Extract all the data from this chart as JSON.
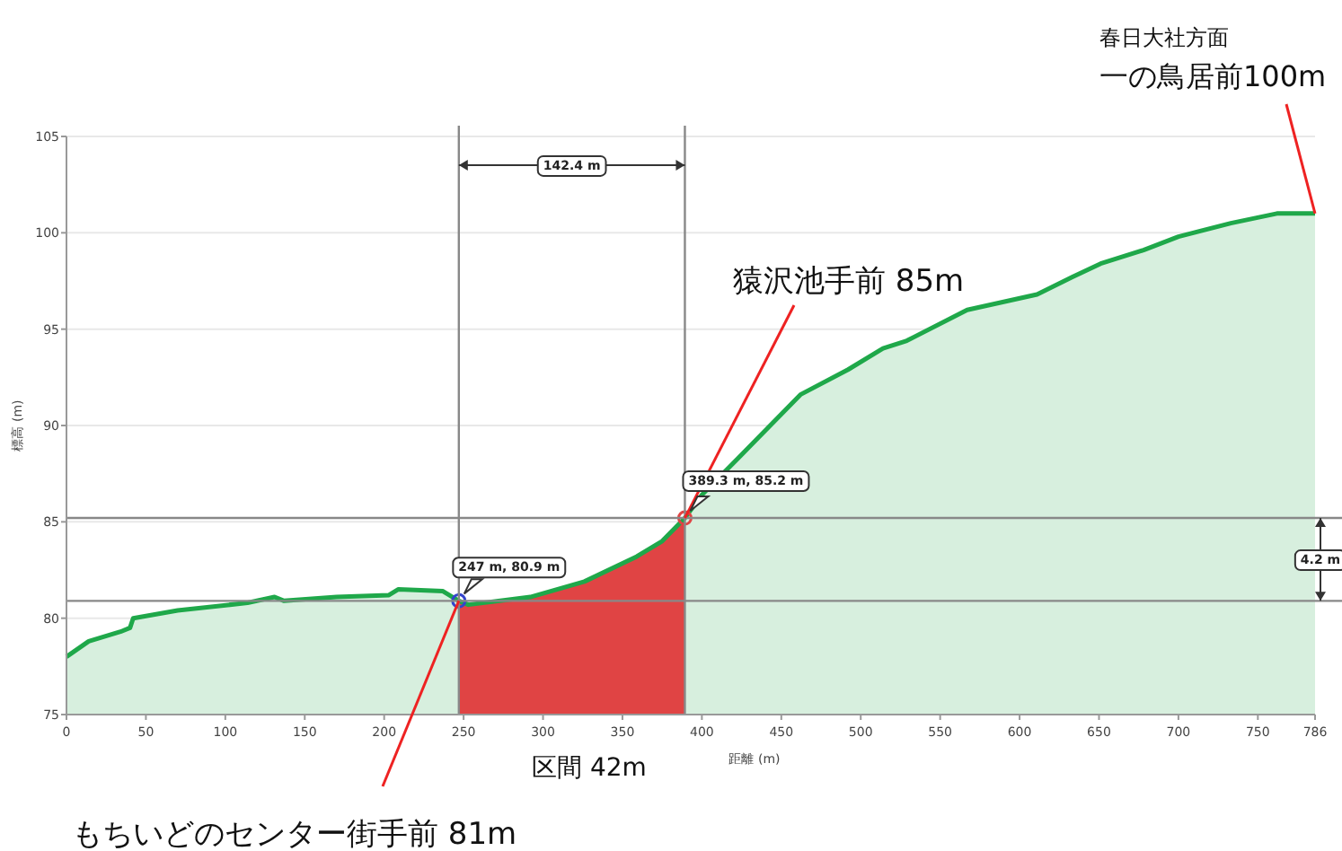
{
  "chart_data": {
    "type": "area",
    "xlabel": "距離 (m)",
    "ylabel": "標高 (m)",
    "xlim": [
      0,
      786
    ],
    "ylim": [
      75,
      105
    ],
    "xticks": [
      0,
      50,
      100,
      150,
      200,
      250,
      300,
      350,
      400,
      450,
      500,
      550,
      600,
      650,
      700,
      750,
      786
    ],
    "yticks": [
      75,
      80,
      85,
      90,
      95,
      100,
      105
    ],
    "grid": "y",
    "series": [
      {
        "color": "#1fa84a",
        "x": [
          0,
          14,
          34,
          40,
          42,
          70,
          114,
          131,
          137,
          170,
          203,
          209,
          237,
          243,
          247,
          253,
          292,
          326,
          359,
          375,
          389.3,
          400,
          430,
          462,
          492,
          514,
          529,
          567,
          611,
          633,
          651,
          678,
          700,
          733,
          762,
          786
        ],
        "values": [
          78.0,
          78.8,
          79.3,
          79.5,
          80.0,
          80.4,
          80.8,
          81.1,
          80.9,
          81.1,
          81.2,
          81.5,
          81.4,
          81.1,
          80.9,
          80.7,
          81.1,
          81.9,
          83.2,
          84.0,
          85.2,
          86.4,
          88.9,
          91.6,
          92.9,
          94.0,
          94.4,
          96.0,
          96.8,
          97.7,
          98.4,
          99.1,
          99.8,
          100.5,
          101.0,
          101.0
        ]
      },
      {
        "type": "area",
        "color": "#e04444",
        "x": [
          247,
          253,
          292,
          326,
          359,
          375,
          389.3
        ],
        "values": [
          80.9,
          80.7,
          81.1,
          81.9,
          83.2,
          84.0,
          85.2
        ]
      },
      {
        "type": "scatter",
        "marker": "circle",
        "colors": [
          "#3344cc",
          "#e04444"
        ],
        "x": [
          247,
          389.3
        ],
        "values": [
          80.9,
          85.2
        ]
      }
    ],
    "ref_lines": [
      {
        "axis": "y",
        "value": 85.2,
        "color": "#888888"
      },
      {
        "axis": "y",
        "value": 80.9,
        "color": "#888888"
      },
      {
        "axis": "x",
        "value": 247,
        "color": "#888888"
      },
      {
        "axis": "x",
        "value": 389.3,
        "color": "#888888"
      }
    ],
    "annotations": [
      "142.4 m",
      {
        "text": "247 m, 80.9 m",
        "x": 247,
        "y": 80.9
      },
      {
        "text": "389.3 m, 85.2 m",
        "x": 389.3,
        "y": 85.2
      },
      "4.2 m",
      "区間 42m",
      {
        "text": "もちいどのセンター街手前 81m",
        "x": 247,
        "y": 80.9
      },
      {
        "text": "猿沢池手前 85m",
        "x": 389.3,
        "y": 85.2
      },
      "春日大社方面",
      {
        "text": "一の鳥居前100m",
        "x": 786,
        "y": 101.0
      }
    ]
  }
}
